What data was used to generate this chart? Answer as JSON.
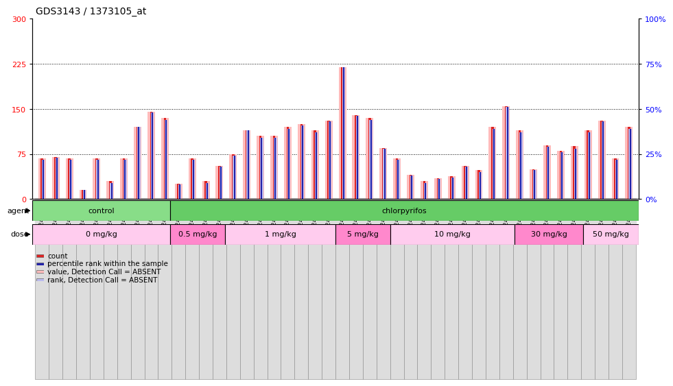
{
  "title": "GDS3143 / 1373105_at",
  "left_yticks": [
    0,
    75,
    150,
    225,
    300
  ],
  "right_yticks": [
    0,
    25,
    50,
    75,
    100
  ],
  "left_ylim": [
    0,
    300
  ],
  "right_ylim": [
    0,
    100
  ],
  "samples": [
    "GSM246129",
    "GSM246130",
    "GSM246131",
    "GSM246145",
    "GSM246146",
    "GSM246147",
    "GSM246148",
    "GSM246157",
    "GSM246158",
    "GSM246159",
    "GSM246149",
    "GSM246150",
    "GSM246151",
    "GSM246152",
    "GSM246132",
    "GSM246133",
    "GSM246134",
    "GSM246135",
    "GSM246160",
    "GSM246161",
    "GSM246162",
    "GSM246163",
    "GSM246164",
    "GSM246165",
    "GSM246166",
    "GSM246167",
    "GSM246136",
    "GSM246137",
    "GSM246138",
    "GSM246139",
    "GSM246140",
    "GSM246168",
    "GSM246169",
    "GSM246170",
    "GSM246171",
    "GSM246154",
    "GSM246155",
    "GSM246156",
    "GSM246172",
    "GSM246173",
    "GSM246141",
    "GSM246142",
    "GSM246143",
    "GSM246144"
  ],
  "count_values": [
    68,
    70,
    68,
    15,
    68,
    30,
    68,
    120,
    145,
    135,
    25,
    68,
    30,
    55,
    75,
    115,
    105,
    105,
    120,
    125,
    115,
    130,
    220,
    140,
    135,
    85,
    68,
    40,
    30,
    35,
    38,
    55,
    48,
    120,
    155,
    115,
    50,
    90,
    80,
    88,
    115,
    130,
    68,
    120
  ],
  "rank_values": [
    22,
    23,
    22,
    5,
    22,
    9,
    22,
    40,
    48,
    44,
    8,
    22,
    9,
    18,
    24,
    38,
    34,
    34,
    39,
    41,
    37,
    43,
    73,
    46,
    44,
    28,
    22,
    13,
    9,
    11,
    12,
    18,
    15,
    39,
    51,
    37,
    16,
    29,
    26,
    28,
    37,
    43,
    22,
    39
  ],
  "agent_groups": [
    {
      "label": "control",
      "start": 0,
      "end": 9,
      "color": "#88DD88"
    },
    {
      "label": "chlorpyrifos",
      "start": 10,
      "end": 43,
      "color": "#66CC66"
    }
  ],
  "dose_groups": [
    {
      "label": "0 mg/kg",
      "start": 0,
      "end": 9,
      "color": "#FFCCEE"
    },
    {
      "label": "0.5 mg/kg",
      "start": 10,
      "end": 13,
      "color": "#FF88CC"
    },
    {
      "label": "1 mg/kg",
      "start": 14,
      "end": 21,
      "color": "#FFCCEE"
    },
    {
      "label": "5 mg/kg",
      "start": 22,
      "end": 25,
      "color": "#FF88CC"
    },
    {
      "label": "10 mg/kg",
      "start": 26,
      "end": 34,
      "color": "#FFCCEE"
    },
    {
      "label": "30 mg/kg",
      "start": 35,
      "end": 39,
      "color": "#FF88CC"
    },
    {
      "label": "50 mg/kg",
      "start": 40,
      "end": 43,
      "color": "#FFCCEE"
    }
  ],
  "count_color": "#DD2222",
  "rank_color": "#2222AA",
  "absent_count_color": "#FFBBBB",
  "absent_rank_color": "#BBBBEE",
  "grid_yticks": [
    75,
    150,
    225
  ],
  "title_fontsize": 10,
  "tick_fontsize": 6.5,
  "row_label_fontsize": 8,
  "row_text_fontsize": 8,
  "legend_fontsize": 7.5,
  "xtick_bg": "#DDDDDD"
}
